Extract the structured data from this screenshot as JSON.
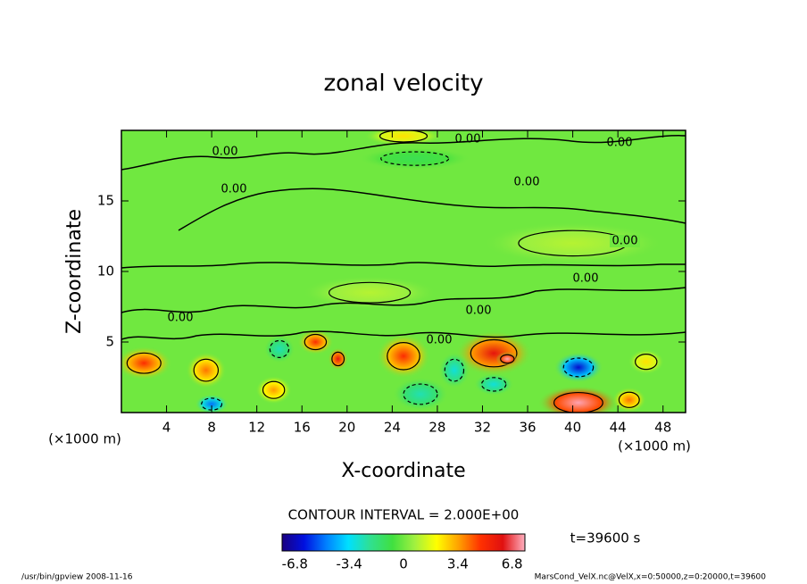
{
  "chart_data": {
    "type": "contour",
    "title": "zonal velocity",
    "xlabel": "X-coordinate",
    "ylabel": "Z-coordinate",
    "x_unit_label": "(×1000 m)",
    "x_unit_label_right": "(×1000 m)",
    "xlim": [
      0,
      50
    ],
    "xticks": [
      4,
      8,
      12,
      16,
      20,
      24,
      28,
      32,
      36,
      40,
      44,
      48
    ],
    "ylim": [
      0,
      20
    ],
    "yticks": [
      5,
      10,
      15
    ],
    "background_value": 0,
    "features": [
      {
        "x": 2,
        "z": 3.5,
        "rx": 2.5,
        "rz": 1.2,
        "value": 5
      },
      {
        "x": 7.5,
        "z": 3,
        "rx": 1.8,
        "rz": 1.3,
        "value": 4
      },
      {
        "x": 13.5,
        "z": 1.6,
        "rx": 1.6,
        "rz": 1.0,
        "value": 3.5
      },
      {
        "x": 17.2,
        "z": 5,
        "rx": 1.6,
        "rz": 0.9,
        "value": 5
      },
      {
        "x": 19.2,
        "z": 3.8,
        "rx": 0.9,
        "rz": 0.8,
        "value": 6
      },
      {
        "x": 25,
        "z": 4,
        "rx": 2.4,
        "rz": 1.6,
        "value": 5
      },
      {
        "x": 33,
        "z": 4.2,
        "rx": 3.4,
        "rz": 1.6,
        "value": 6
      },
      {
        "x": 34.2,
        "z": 3.8,
        "rx": 1.0,
        "rz": 0.5,
        "value": 7.5
      },
      {
        "x": 40.5,
        "z": 3.2,
        "rx": 2.2,
        "rz": 1.1,
        "value": -6.5
      },
      {
        "x": 40.5,
        "z": 0.7,
        "rx": 3.6,
        "rz": 1.2,
        "value": 7.5
      },
      {
        "x": 45,
        "z": 0.9,
        "rx": 1.5,
        "rz": 0.9,
        "value": 4
      },
      {
        "x": 33,
        "z": 2,
        "rx": 1.8,
        "rz": 0.8,
        "value": -3
      },
      {
        "x": 26.5,
        "z": 1.3,
        "rx": 2.5,
        "rz": 1.2,
        "value": -2.5
      },
      {
        "x": 14,
        "z": 4.5,
        "rx": 1.4,
        "rz": 1.0,
        "value": -2.5
      },
      {
        "x": 29.5,
        "z": 3,
        "rx": 1.4,
        "rz": 1.3,
        "value": -3
      },
      {
        "x": 8,
        "z": 0.6,
        "rx": 1.5,
        "rz": 0.7,
        "value": -5
      },
      {
        "x": 46.5,
        "z": 3.6,
        "rx": 1.6,
        "rz": 0.9,
        "value": 2.5
      },
      {
        "x": 25,
        "z": 19.6,
        "rx": 3.5,
        "rz": 0.7,
        "value": 2.5
      },
      {
        "x": 26,
        "z": 18,
        "rx": 5,
        "rz": 0.8,
        "value": -1
      },
      {
        "x": 22,
        "z": 8.5,
        "rx": 6,
        "rz": 1.2,
        "value": 1
      },
      {
        "x": 40,
        "z": 12,
        "rx": 8,
        "rz": 1.5,
        "value": 1
      }
    ],
    "contour_labels": [
      "0.00",
      "0.00",
      "0.00",
      "0.00",
      "0.00",
      "0.00",
      "0.00",
      "0.00",
      "0.00",
      "0.00"
    ],
    "contour_interval": "CONTOUR INTERVAL = 2.000E+00",
    "colormap": [
      "#1a0080",
      "#0010e0",
      "#0080ff",
      "#00e0ff",
      "#30e090",
      "#40e040",
      "#a0f040",
      "#ffff00",
      "#ffa000",
      "#ff3000",
      "#e01010",
      "#ffb0c0"
    ],
    "clim": [
      -7.6,
      7.6
    ],
    "colorbar_ticks": [
      -6.8,
      -3.4,
      0,
      3.4,
      6.8
    ],
    "time_label": "t=39600 s",
    "footer_left": "/usr/bin/gpview   2008-11-16",
    "footer_right": "MarsCond_VelX.nc@VelX,x=0:50000,z=0:20000,t=39600"
  }
}
